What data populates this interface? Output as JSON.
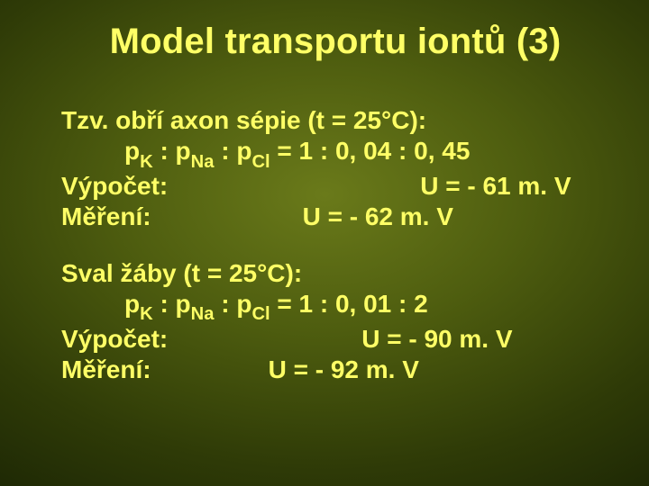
{
  "background": {
    "center_color": "#6a7a1a",
    "mid_color": "#4e5d0f",
    "outer_color": "#2f3b07",
    "edge_color": "#1a2404"
  },
  "text_color": "#ffff66",
  "title": "Model transportu iontů (3)",
  "blocks": [
    {
      "heading": "Tzv. obří axon sépie (t = 25°C):",
      "ratio_prefix": "p",
      "ratio_sub1": "K",
      "ratio_sep": " : p",
      "ratio_sub2": "Na",
      "ratio_sub3": "Cl",
      "ratio_rhs": " = 1 : 0, 04 : 0, 45",
      "calc_label": "Výpočet:",
      "calc_value": "U = - 61 m. V",
      "meas_label": "Měření:",
      "meas_value": "U = - 62 m. V",
      "calc_gap_class": "tab-wide",
      "meas_gap_class": "tab-mid"
    },
    {
      "heading": "Sval žáby (t = 25°C):",
      "ratio_prefix": "p",
      "ratio_sub1": "K",
      "ratio_sep": " : p",
      "ratio_sub2": "Na",
      "ratio_sub3": "Cl",
      "ratio_rhs": " = 1 : 0, 01 : 2",
      "calc_label": "Výpočet:",
      "calc_value": "U = - 90 m. V",
      "meas_label": "Měření:",
      "meas_value": "U = - 92 m. V",
      "calc_gap_class": "tab-med",
      "meas_gap_class": "tab-short"
    }
  ]
}
